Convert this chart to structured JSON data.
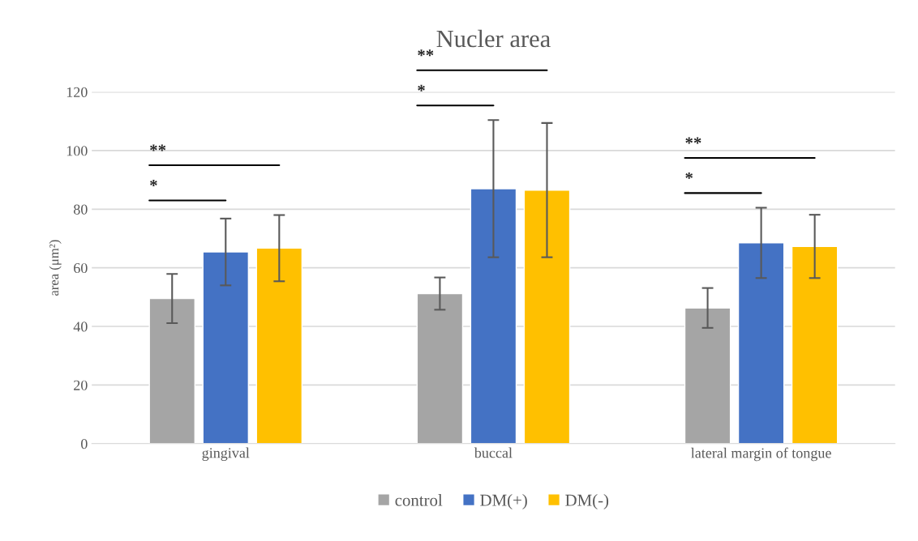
{
  "chart_data": {
    "type": "bar",
    "title": "Nucler area",
    "ylabel": "area (μm²)",
    "categories": [
      "gingival",
      "buccal",
      "lateral margin of tongue"
    ],
    "series": [
      {
        "name": "control",
        "color": "#a5a5a5",
        "values": [
          49.5,
          51.2,
          46.3
        ],
        "errors": [
          8.4,
          5.5,
          6.8
        ]
      },
      {
        "name": "DM(+)",
        "color": "#4472c4",
        "values": [
          65.4,
          87.0,
          68.5
        ],
        "errors": [
          11.4,
          23.4,
          12.0
        ]
      },
      {
        "name": "DM(-)",
        "color": "#ffc000",
        "values": [
          66.7,
          86.5,
          67.3
        ],
        "errors": [
          11.3,
          22.9,
          10.8
        ]
      }
    ],
    "ylim": [
      0,
      120
    ],
    "yticks": [
      0,
      20,
      40,
      60,
      80,
      100,
      120
    ],
    "grid": "y",
    "legend": "bottom",
    "annotations": [
      "*",
      "**",
      "*",
      "**",
      "*",
      "**"
    ]
  }
}
